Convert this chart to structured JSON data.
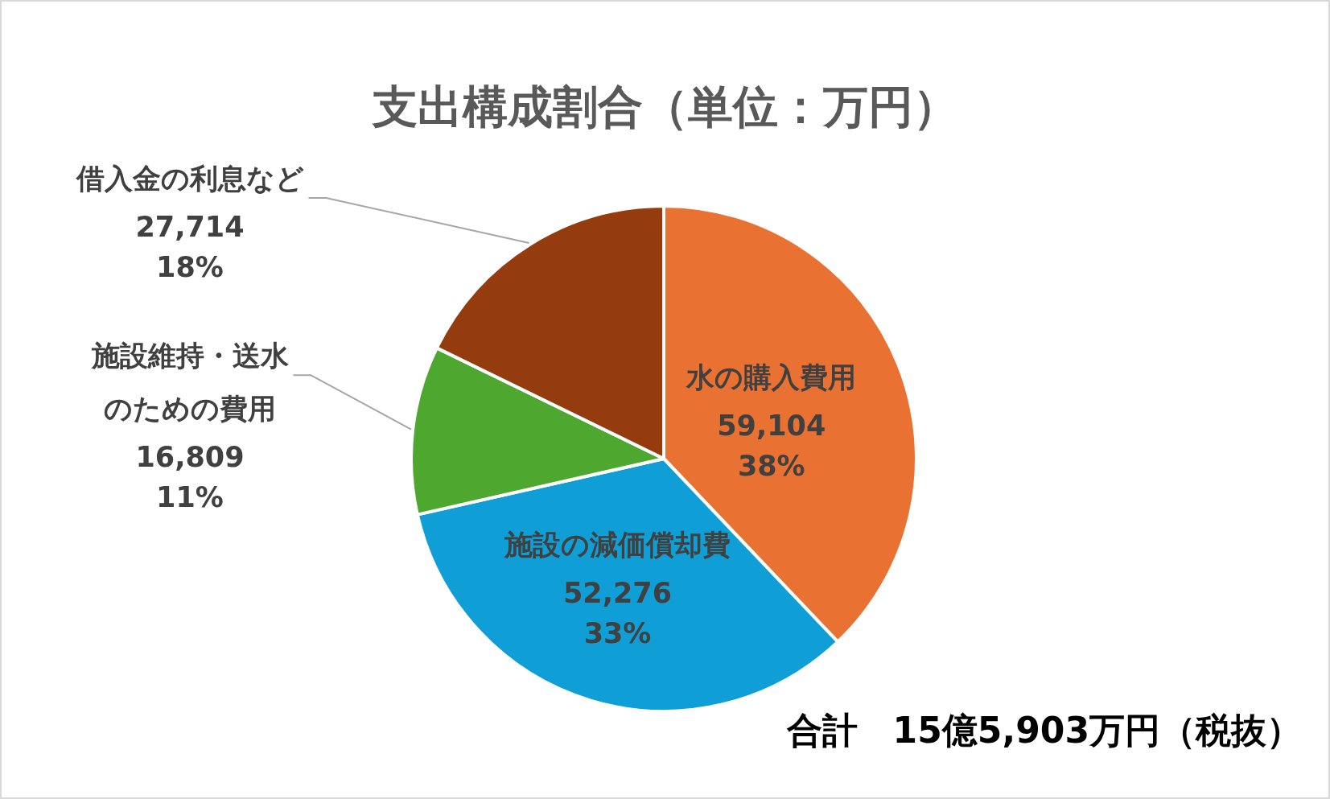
{
  "chart_data": {
    "type": "pie",
    "title": "支出構成割合（単位：万円）",
    "categories": [
      "水の購入費用",
      "施設の減価償却費",
      "施設維持・送水のための費用",
      "借入金の利息など"
    ],
    "values": [
      59104,
      52276,
      16809,
      27714
    ],
    "colors": [
      "#e97132",
      "#0f9ed5",
      "#4ea72e",
      "#953c0f"
    ],
    "value_labels": [
      "59,104\n38%",
      "52,276\n33%",
      "16,809\n11%",
      "27,714\n18%"
    ],
    "annotations": [
      "合計　15億5,903万円（税抜）"
    ]
  }
}
